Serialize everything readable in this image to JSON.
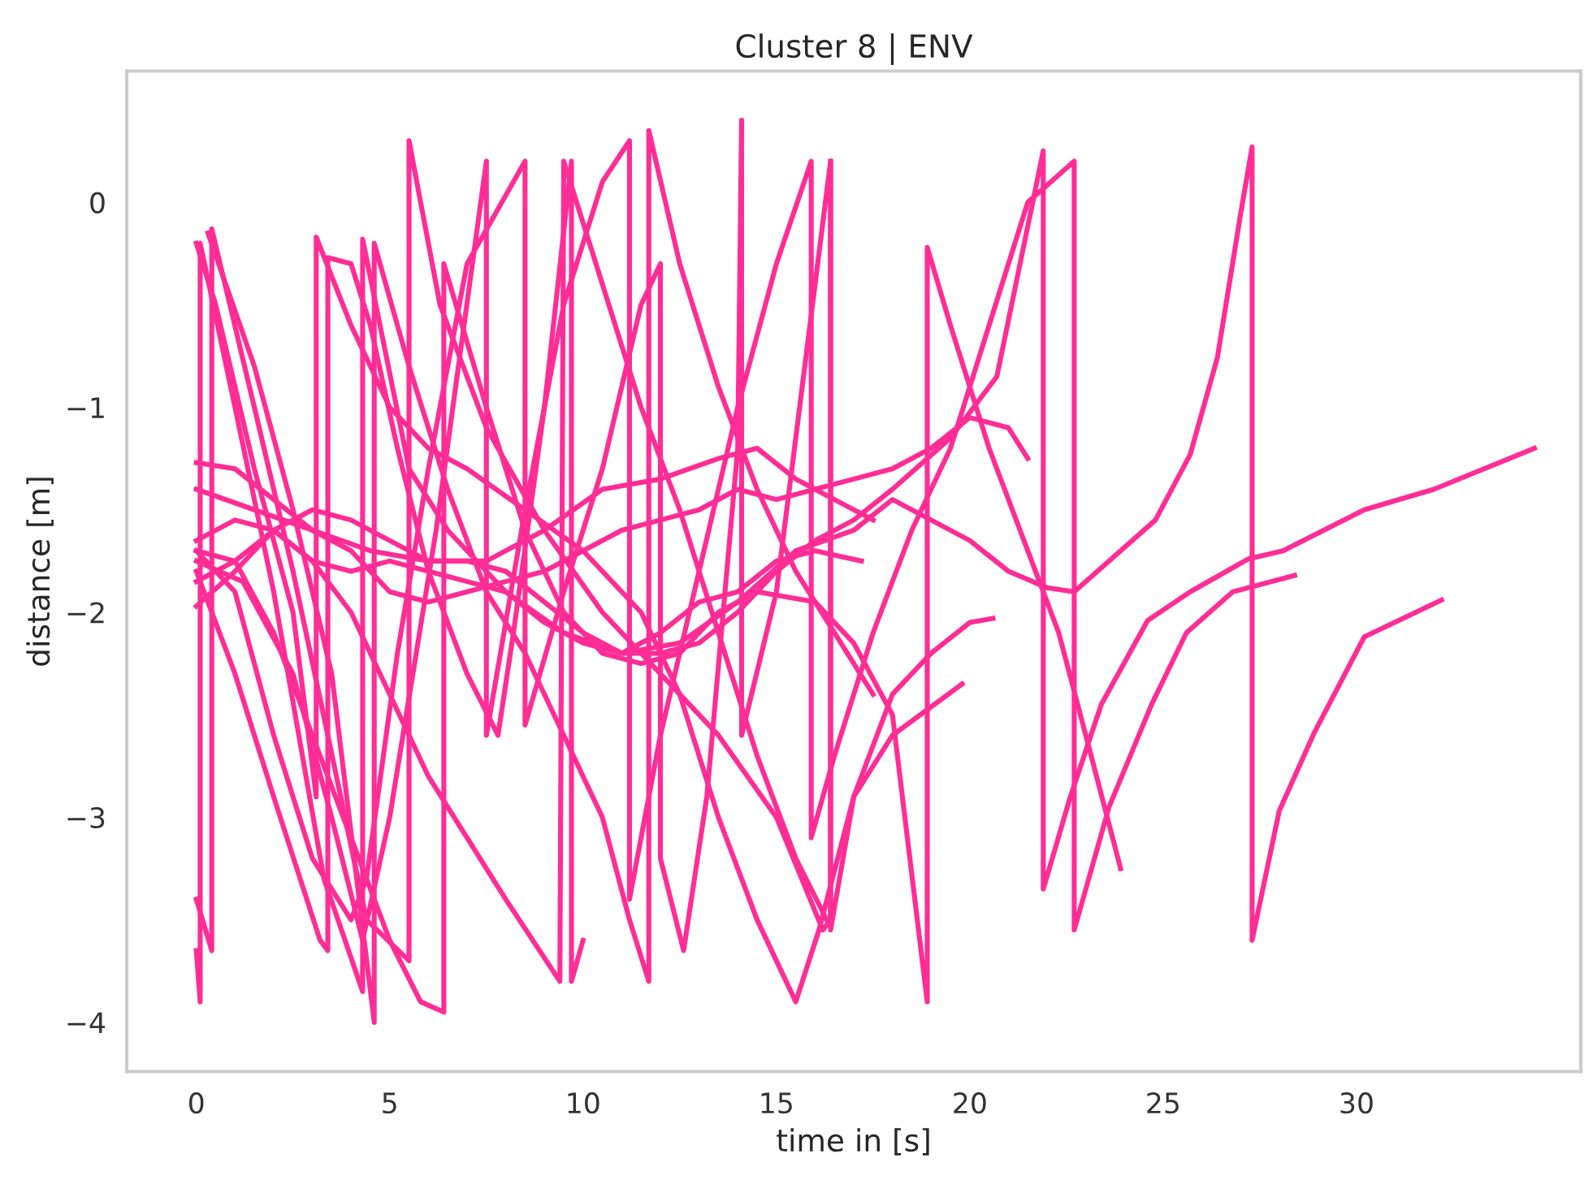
{
  "chart_data": {
    "type": "line",
    "title": "Cluster 8 | ENV",
    "xlabel": "time in [s]",
    "ylabel": "distance [m]",
    "xlim": [
      -1.8,
      35.8
    ],
    "ylim": [
      -4.24,
      0.64
    ],
    "xticks": [
      0,
      5,
      10,
      15,
      20,
      25,
      30
    ],
    "yticks": [
      -4,
      -3,
      -2,
      -1,
      0
    ],
    "grid": false,
    "marker": "none",
    "line_style": "solid",
    "series": [
      {
        "color": "#ff2d95",
        "x": [
          0,
          0.1,
          0.1,
          1,
          2,
          3.3,
          4.3,
          4.3,
          5.5,
          6.5,
          8,
          9.5,
          11,
          12.5,
          14,
          15.5,
          17,
          18,
          19,
          20,
          21,
          22,
          22.7,
          24.8,
          25.7,
          26.4,
          27.0,
          27.3,
          27.3,
          28.0,
          28.9,
          30.2,
          32.2
        ],
        "values": [
          -3.65,
          -3.9,
          -0.2,
          -1.0,
          -1.9,
          -3.3,
          -3.85,
          -0.18,
          -1.3,
          -1.6,
          -1.9,
          -2.1,
          -2.2,
          -2.15,
          -1.95,
          -1.7,
          -1.6,
          -1.45,
          -1.55,
          -1.65,
          -1.8,
          -1.88,
          -1.9,
          -1.55,
          -1.23,
          -0.76,
          -0.06,
          0.27,
          -3.6,
          -2.97,
          -2.59,
          -2.12,
          -1.94
        ]
      },
      {
        "color": "#ff2d95",
        "x": [
          0,
          0.4,
          0.4,
          1.5,
          2.5,
          3.4,
          4.4,
          5.5,
          5.5,
          6.3,
          7.5,
          9,
          10.5,
          12,
          13.5,
          15,
          16.2,
          16.4,
          16.4
        ],
        "values": [
          -3.4,
          -3.65,
          -0.13,
          -1.0,
          -1.8,
          -2.6,
          -3.5,
          -3.7,
          0.3,
          -0.5,
          -1.1,
          -1.6,
          -2.0,
          -2.3,
          -2.6,
          -3.0,
          -3.55,
          -3.5,
          0.2
        ]
      },
      {
        "color": "#ff2d95",
        "x": [
          0,
          1,
          2,
          3,
          4,
          5,
          6,
          7,
          8,
          9,
          10,
          11,
          12,
          13,
          14,
          15,
          16,
          17.2
        ],
        "values": [
          -1.65,
          -1.55,
          -1.6,
          -1.75,
          -1.8,
          -1.75,
          -1.8,
          -1.85,
          -1.9,
          -2.05,
          -2.15,
          -2.2,
          -2.1,
          -1.95,
          -1.9,
          -1.75,
          -1.7,
          -1.75
        ]
      },
      {
        "color": "#ff2d95",
        "x": [
          0,
          1.5,
          3,
          4.5,
          6,
          7.5,
          9,
          10.5,
          12,
          13.5,
          14.5,
          15.5,
          16.5,
          17.5
        ],
        "values": [
          -1.4,
          -1.5,
          -1.6,
          -1.7,
          -1.75,
          -1.75,
          -1.6,
          -1.4,
          -1.35,
          -1.25,
          -1.2,
          -1.35,
          -1.45,
          -1.55
        ]
      },
      {
        "color": "#ff2d95",
        "x": [
          0,
          1,
          2,
          3,
          4,
          5,
          6,
          7,
          8,
          9,
          10,
          11,
          12,
          13,
          14,
          15,
          16,
          17,
          18,
          19,
          20,
          21,
          21.5
        ],
        "values": [
          -1.27,
          -1.3,
          -1.45,
          -1.6,
          -1.7,
          -1.9,
          -1.95,
          -1.9,
          -1.85,
          -1.8,
          -1.7,
          -1.6,
          -1.55,
          -1.5,
          -1.4,
          -1.45,
          -1.4,
          -1.35,
          -1.3,
          -1.2,
          -1.05,
          -1.1,
          -1.25
        ]
      },
      {
        "color": "#ff2d95",
        "x": [
          0,
          1,
          2,
          3,
          4,
          5,
          6,
          7,
          8,
          9,
          10,
          11,
          12,
          13,
          14,
          15,
          16,
          17,
          18,
          19.5,
          20.7,
          21.9,
          21.9,
          22.6,
          23.4,
          24.6,
          25.7,
          27.2,
          28.1,
          30.2,
          32,
          34.6
        ],
        "values": [
          -1.97,
          -1.8,
          -1.6,
          -1.5,
          -1.55,
          -1.65,
          -1.75,
          -1.75,
          -1.8,
          -1.95,
          -2.1,
          -2.2,
          -2.2,
          -2.15,
          -2.0,
          -1.8,
          -1.65,
          -1.55,
          -1.4,
          -1.15,
          -0.85,
          0.25,
          -3.35,
          -2.9,
          -2.45,
          -2.04,
          -1.9,
          -1.74,
          -1.7,
          -1.5,
          -1.4,
          -1.2
        ]
      },
      {
        "color": "#ff2d95",
        "x": [
          0,
          1,
          2,
          3,
          4,
          5,
          5.8,
          6.4,
          6.4,
          7.5,
          8.5,
          9.5,
          10.5,
          11.5,
          12.5,
          13.5,
          14.5,
          16,
          17,
          18,
          18.9,
          18.9,
          19.5,
          20.5,
          21.3,
          22.3,
          23,
          23.9
        ],
        "values": [
          -1.7,
          -1.75,
          -2.1,
          -2.6,
          -3.1,
          -3.6,
          -3.9,
          -3.95,
          -0.3,
          -1.0,
          -1.6,
          -2.0,
          -2.2,
          -2.25,
          -2.2,
          -2.0,
          -1.9,
          -1.95,
          -2.15,
          -2.5,
          -3.9,
          -0.22,
          -0.6,
          -1.2,
          -1.6,
          -2.1,
          -2.6,
          -3.25
        ]
      },
      {
        "color": "#ff2d95",
        "x": [
          0,
          0.5,
          1.5,
          2.5,
          3.1,
          3.1,
          4,
          5,
          6,
          7,
          8.5,
          10,
          11.5,
          12.5,
          13.5,
          14.5,
          15.5,
          16.1,
          17,
          18,
          19,
          20,
          20.6
        ],
        "values": [
          -0.2,
          -0.5,
          -1.3,
          -2.0,
          -2.9,
          -0.17,
          -0.6,
          -1.0,
          -1.2,
          -1.3,
          -1.5,
          -1.7,
          -2.0,
          -2.4,
          -3.0,
          -3.5,
          -3.9,
          -3.55,
          -2.9,
          -2.4,
          -2.2,
          -2.05,
          -2.03
        ]
      },
      {
        "color": "#ff2d95",
        "x": [
          0.3,
          1.5,
          2.5,
          3.5,
          4.6,
          4.6,
          5.5,
          6.5,
          7.5,
          8.5,
          9.5,
          10.5,
          11.2,
          11.7,
          11.7,
          12.5,
          13.5,
          14.5,
          15.5,
          16.5,
          17.5
        ],
        "values": [
          -0.15,
          -0.8,
          -1.5,
          -2.3,
          -4.0,
          -0.2,
          -0.8,
          -1.4,
          -1.9,
          -2.2,
          -2.6,
          -3.0,
          -3.5,
          -3.8,
          0.35,
          -0.3,
          -0.9,
          -1.4,
          -1.8,
          -2.1,
          -2.4
        ]
      },
      {
        "color": "#ff2d95",
        "x": [
          0,
          1,
          2,
          3.2,
          3.4,
          3.4,
          4,
          4.5,
          5.2,
          6,
          7,
          7.8,
          8.2,
          9,
          9.7,
          9.7,
          10
        ],
        "values": [
          -1.8,
          -2.3,
          -2.9,
          -3.6,
          -3.65,
          -0.27,
          -0.3,
          -0.6,
          -1.2,
          -1.8,
          -2.3,
          -2.6,
          -2.1,
          -1.0,
          0.2,
          -3.8,
          -3.6
        ]
      },
      {
        "color": "#ff2d95",
        "x": [
          0,
          1.2,
          2.5,
          3.5,
          4.3,
          5,
          6.2,
          7.5,
          7.5,
          8.5,
          9.5,
          10.5,
          11.2,
          11.2,
          12,
          13,
          14,
          15,
          15.9,
          15.9,
          16.5,
          17.5,
          18.5,
          19.5,
          20.5,
          21.5,
          22.7,
          22.7,
          23.6,
          24.7,
          25.6,
          26.8,
          28.4
        ],
        "values": [
          -1.75,
          -1.85,
          -2.3,
          -3.0,
          -3.6,
          -3.0,
          -1.6,
          0.2,
          -2.6,
          -1.5,
          -0.5,
          0.1,
          0.3,
          -3.4,
          -2.6,
          -1.8,
          -1.0,
          -0.3,
          0.2,
          -3.1,
          -2.7,
          -2.1,
          -1.6,
          -1.2,
          -0.6,
          0.0,
          0.2,
          -3.55,
          -2.95,
          -2.45,
          -2.1,
          -1.9,
          -1.82
        ]
      },
      {
        "color": "#ff2d95",
        "x": [
          0,
          1,
          2,
          3,
          4,
          4.4,
          5.2,
          6,
          7,
          8.5,
          8.5,
          9.5,
          10.5,
          11.5,
          12,
          12,
          12.6,
          13.2,
          14,
          14.1,
          14.1,
          15,
          16.4,
          16.4,
          17,
          18,
          19.8
        ],
        "values": [
          -1.7,
          -1.9,
          -2.6,
          -3.2,
          -3.5,
          -3.3,
          -2.2,
          -1.3,
          -0.3,
          0.2,
          -2.55,
          -1.9,
          -1.3,
          -0.5,
          -0.3,
          -3.2,
          -3.65,
          -2.9,
          -1.2,
          0.4,
          -2.6,
          -1.9,
          0.2,
          -3.55,
          -2.9,
          -2.6,
          -2.35
        ]
      },
      {
        "color": "#ff2d95",
        "x": [
          0,
          1,
          2,
          3,
          4,
          5,
          6,
          7,
          8,
          9.4,
          9.5,
          10.5,
          11.5,
          12.5,
          13.5,
          14.5,
          15.5,
          16.3
        ],
        "values": [
          -1.85,
          -1.75,
          -1.6,
          -1.75,
          -2.0,
          -2.4,
          -2.8,
          -3.1,
          -3.4,
          -3.8,
          0.2,
          -0.4,
          -1.0,
          -1.5,
          -2.1,
          -2.7,
          -3.2,
          -3.5
        ]
      }
    ]
  }
}
